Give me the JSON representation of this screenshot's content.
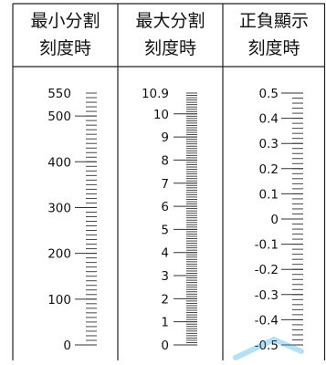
{
  "columns": [
    {
      "header": [
        "最小分割",
        "刻度時"
      ],
      "labels": [
        {
          "value": 550,
          "text": "550"
        },
        {
          "value": 500,
          "text": "500"
        },
        {
          "value": 400,
          "text": "400"
        },
        {
          "value": 300,
          "text": "300"
        },
        {
          "value": 200,
          "text": "200"
        },
        {
          "value": 100,
          "text": "100"
        },
        {
          "value": 0,
          "text": "0"
        }
      ],
      "range": [
        0,
        550
      ],
      "minor_step": 10,
      "major_step": 100
    },
    {
      "header": [
        "最大分割",
        "刻度時"
      ],
      "labels": [
        {
          "value": 10.9,
          "text": "10.9"
        },
        {
          "value": 10,
          "text": "10"
        },
        {
          "value": 9,
          "text": "9"
        },
        {
          "value": 8,
          "text": "8"
        },
        {
          "value": 7,
          "text": "7"
        },
        {
          "value": 6,
          "text": "6"
        },
        {
          "value": 5,
          "text": "5"
        },
        {
          "value": 4,
          "text": "4"
        },
        {
          "value": 3,
          "text": "3"
        },
        {
          "value": 2,
          "text": "2"
        },
        {
          "value": 1,
          "text": "1"
        },
        {
          "value": 0,
          "text": "0"
        }
      ],
      "range": [
        0,
        10.9
      ],
      "minor_step": 0.1,
      "major_step": 1
    },
    {
      "header": [
        "正負顯示",
        "刻度時"
      ],
      "labels": [
        {
          "value": 0.5,
          "text": "0.5"
        },
        {
          "value": 0.4,
          "text": "0.4"
        },
        {
          "value": 0.3,
          "text": "0.3"
        },
        {
          "value": 0.2,
          "text": "0.2"
        },
        {
          "value": 0.1,
          "text": "0.1"
        },
        {
          "value": 0,
          "text": "0"
        },
        {
          "value": -0.1,
          "text": "-0.1"
        },
        {
          "value": -0.2,
          "text": "-0.2"
        },
        {
          "value": -0.3,
          "text": "-0.3"
        },
        {
          "value": -0.4,
          "text": "-0.4"
        },
        {
          "value": -0.5,
          "text": "-0.5"
        }
      ],
      "range": [
        -0.5,
        0.5
      ],
      "minor_step": 0.02,
      "major_step": 0.1
    }
  ],
  "colors": {
    "border": "#222222",
    "header_bg": "#ffffff",
    "text": "#111111",
    "scale": "#333333",
    "watermark": "#2aa8e0"
  }
}
